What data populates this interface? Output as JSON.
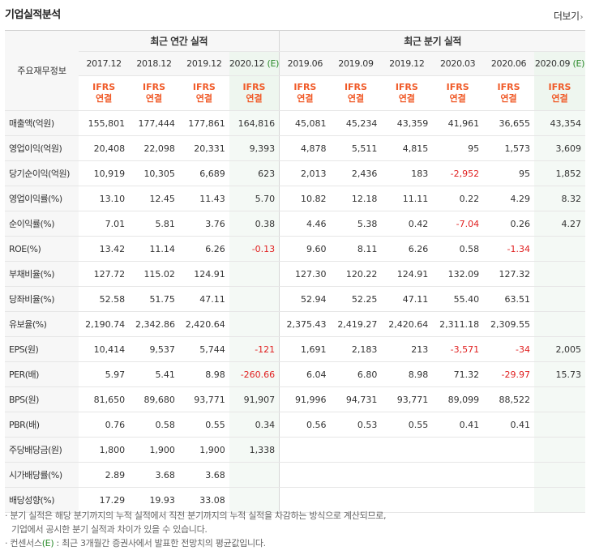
{
  "title": "기업실적분석",
  "more_label": "더보기",
  "header": {
    "label": "주요재무정보",
    "annual_group": "최근 연간 실적",
    "quarter_group": "최근 분기 실적",
    "annual_periods": [
      "2017.12",
      "2018.12",
      "2019.12",
      "2020.12"
    ],
    "annual_estimate_suffix": "(E)",
    "quarter_periods": [
      "2019.06",
      "2019.09",
      "2019.12",
      "2020.03",
      "2020.06",
      "2020.09"
    ],
    "quarter_estimate_suffix": "(E)",
    "ifrs": "IFRS",
    "consolidated": "연결"
  },
  "rows": [
    {
      "label": "매출액(억원)",
      "annual": [
        "155,801",
        "177,444",
        "177,861",
        "164,816"
      ],
      "quarter": [
        "45,081",
        "45,234",
        "43,359",
        "41,961",
        "36,655",
        "43,354"
      ]
    },
    {
      "label": "영업이익(억원)",
      "annual": [
        "20,408",
        "22,098",
        "20,331",
        "9,393"
      ],
      "quarter": [
        "4,878",
        "5,511",
        "4,815",
        "95",
        "1,573",
        "3,609"
      ]
    },
    {
      "label": "당기순이익(억원)",
      "annual": [
        "10,919",
        "10,305",
        "6,689",
        "623"
      ],
      "quarter": [
        "2,013",
        "2,436",
        "183",
        "-2,952",
        "95",
        "1,852"
      ]
    },
    {
      "label": "영업이익률(%)",
      "annual": [
        "13.10",
        "12.45",
        "11.43",
        "5.70"
      ],
      "quarter": [
        "10.82",
        "12.18",
        "11.11",
        "0.22",
        "4.29",
        "8.32"
      ]
    },
    {
      "label": "순이익률(%)",
      "annual": [
        "7.01",
        "5.81",
        "3.76",
        "0.38"
      ],
      "quarter": [
        "4.46",
        "5.38",
        "0.42",
        "-7.04",
        "0.26",
        "4.27"
      ]
    },
    {
      "label": "ROE(%)",
      "annual": [
        "13.42",
        "11.14",
        "6.26",
        "-0.13"
      ],
      "quarter": [
        "9.60",
        "8.11",
        "6.26",
        "0.58",
        "-1.34",
        ""
      ]
    },
    {
      "label": "부채비율(%)",
      "annual": [
        "127.72",
        "115.02",
        "124.91",
        ""
      ],
      "quarter": [
        "127.30",
        "120.22",
        "124.91",
        "132.09",
        "127.32",
        ""
      ]
    },
    {
      "label": "당좌비율(%)",
      "annual": [
        "52.58",
        "51.75",
        "47.11",
        ""
      ],
      "quarter": [
        "52.94",
        "52.25",
        "47.11",
        "55.40",
        "63.51",
        ""
      ]
    },
    {
      "label": "유보율(%)",
      "annual": [
        "2,190.74",
        "2,342.86",
        "2,420.64",
        ""
      ],
      "quarter": [
        "2,375.43",
        "2,419.27",
        "2,420.64",
        "2,311.18",
        "2,309.55",
        ""
      ]
    },
    {
      "label": "EPS(원)",
      "annual": [
        "10,414",
        "9,537",
        "5,744",
        "-121"
      ],
      "quarter": [
        "1,691",
        "2,183",
        "213",
        "-3,571",
        "-34",
        "2,005"
      ]
    },
    {
      "label": "PER(배)",
      "annual": [
        "5.97",
        "5.41",
        "8.98",
        "-260.66"
      ],
      "quarter": [
        "6.04",
        "6.80",
        "8.98",
        "71.32",
        "-29.97",
        "15.73"
      ]
    },
    {
      "label": "BPS(원)",
      "annual": [
        "81,650",
        "89,680",
        "93,771",
        "91,907"
      ],
      "quarter": [
        "91,996",
        "94,731",
        "93,771",
        "89,099",
        "88,522",
        ""
      ]
    },
    {
      "label": "PBR(배)",
      "annual": [
        "0.76",
        "0.58",
        "0.55",
        "0.34"
      ],
      "quarter": [
        "0.56",
        "0.53",
        "0.55",
        "0.41",
        "0.41",
        ""
      ]
    },
    {
      "label": "주당배당금(원)",
      "annual": [
        "1,800",
        "1,900",
        "1,900",
        "1,338"
      ],
      "quarter": [
        "",
        "",
        "",
        "",
        "",
        ""
      ]
    },
    {
      "label": "시가배당률(%)",
      "annual": [
        "2.89",
        "3.68",
        "3.68",
        ""
      ],
      "quarter": [
        "",
        "",
        "",
        "",
        "",
        ""
      ]
    },
    {
      "label": "배당성향(%)",
      "annual": [
        "17.29",
        "19.93",
        "33.08",
        ""
      ],
      "quarter": [
        "",
        "",
        "",
        "",
        "",
        ""
      ]
    }
  ],
  "notes": {
    "line1": "분기 실적은 해당 분기까지의 누적 실적에서 직전 분기까지의 누적 실적을 차감하는 방식으로 계산되므로,",
    "line2": "기업에서 공시한 분기 실적과 차이가 있을 수 있습니다.",
    "line3_prefix": "컨센서스",
    "line3_e": "(E)",
    "line3_rest": " : 최근 3개월간 증권사에서 발표한 전망치의 평균값입니다."
  }
}
